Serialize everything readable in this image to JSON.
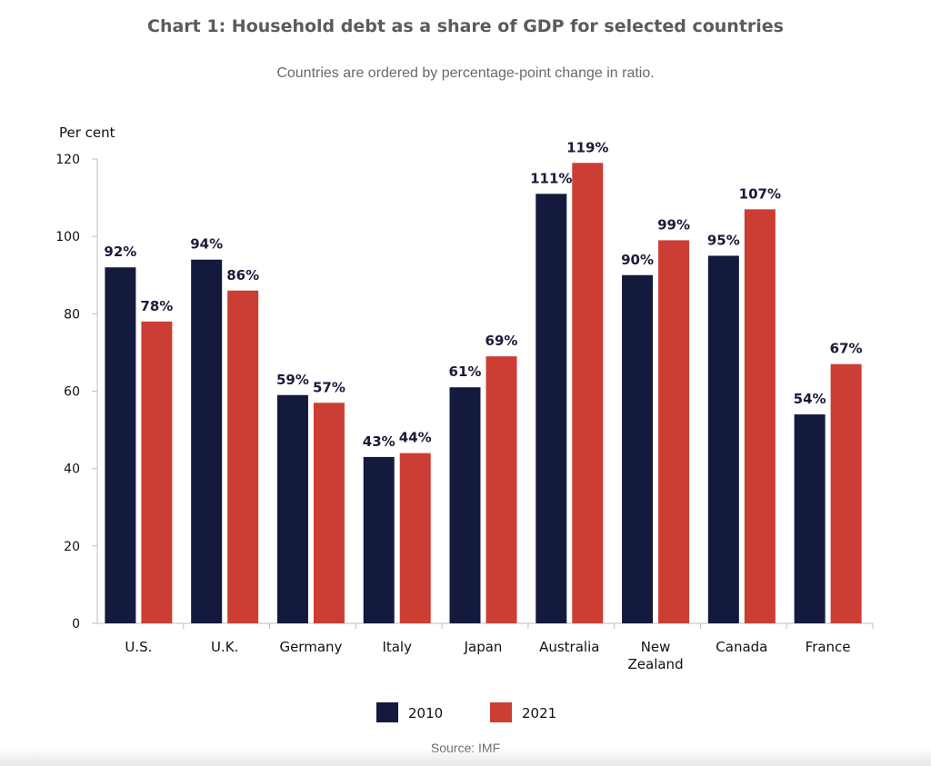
{
  "chart_data": {
    "type": "bar",
    "title": "Chart 1: Household debt as a share of GDP for selected countries",
    "subtitle": "Countries are ordered by percentage-point change in ratio.",
    "ylabel": "Per cent",
    "xlabel": "",
    "ylim": [
      0,
      120
    ],
    "yticks": [
      0,
      20,
      40,
      60,
      80,
      100,
      120
    ],
    "categories": [
      "U.S.",
      "U.K.",
      "Germany",
      "Italy",
      "Japan",
      "Australia",
      "New Zealand",
      "Canada",
      "France"
    ],
    "category_lines": [
      [
        "U.S."
      ],
      [
        "U.K."
      ],
      [
        "Germany"
      ],
      [
        "Italy"
      ],
      [
        "Japan"
      ],
      [
        "Australia"
      ],
      [
        "New",
        "Zealand"
      ],
      [
        "Canada"
      ],
      [
        "France"
      ]
    ],
    "series": [
      {
        "name": "2010",
        "color": "#141a3d",
        "values": [
          92,
          94,
          59,
          43,
          61,
          111,
          90,
          95,
          54
        ],
        "labels": [
          "92%",
          "94%",
          "59%",
          "43%",
          "61%",
          "111%",
          "90%",
          "95%",
          "54%"
        ]
      },
      {
        "name": "2021",
        "color": "#cc3d33",
        "values": [
          78,
          86,
          57,
          44,
          69,
          119,
          99,
          107,
          67
        ],
        "labels": [
          "78%",
          "86%",
          "57%",
          "44%",
          "69%",
          "119%",
          "99%",
          "107%",
          "67%"
        ]
      }
    ],
    "grid": false,
    "legend_position": "bottom-center",
    "source": "Source: IMF"
  }
}
